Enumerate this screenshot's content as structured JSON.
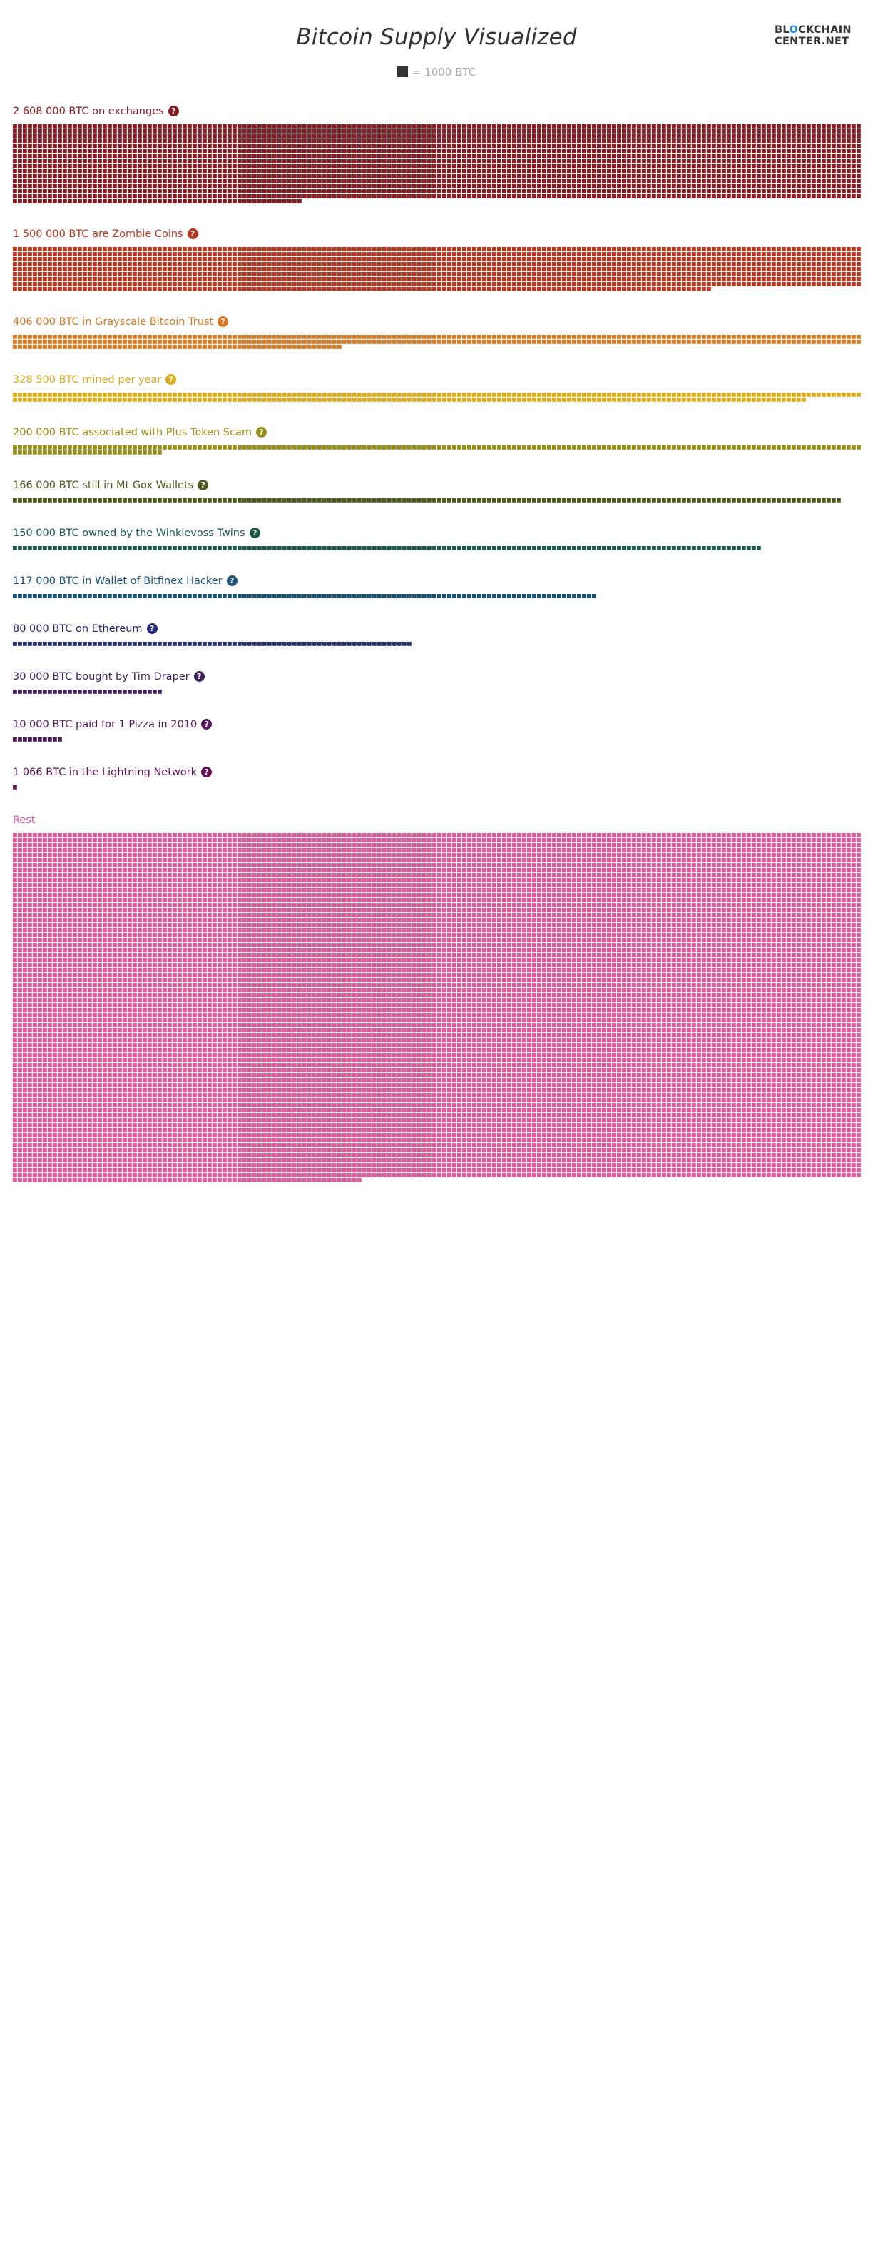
{
  "page": {
    "title": "Bitcoin Supply Visualized",
    "legend_text": "= 1000 BTC",
    "logo_line1_a": "BL",
    "logo_line1_dot": "O",
    "logo_line1_b": "CKCHAIN",
    "logo_line2": "CENTER.NET"
  },
  "chart_data": {
    "type": "waffle",
    "unit": "1000 BTC per square",
    "blocks": [
      {
        "label": "2 608 000 BTC on exchanges",
        "btc": 2608000,
        "color": "#8e1a21",
        "has_help": true
      },
      {
        "label": "1 500 000 BTC are Zombie Coins",
        "btc": 1500000,
        "color": "#b9351e",
        "has_help": true
      },
      {
        "label": "406 000 BTC in Grayscale Bitcoin Trust",
        "btc": 406000,
        "color": "#d9761e",
        "has_help": true
      },
      {
        "label": "328 500 BTC mined per year",
        "btc": 328500,
        "color": "#ddaa1e",
        "has_help": true
      },
      {
        "label": "200 000 BTC associated with Plus Token Scam",
        "btc": 200000,
        "color": "#999018",
        "has_help": true
      },
      {
        "label": "166 000 BTC still in Mt Gox Wallets",
        "btc": 166000,
        "color": "#4d5a1e",
        "has_help": true
      },
      {
        "label": "150 000 BTC owned by the Winklevoss Twins",
        "btc": 150000,
        "color": "#1a5b45",
        "has_help": true
      },
      {
        "label": "117 000 BTC in Wallet of Bitfinex Hacker",
        "btc": 117000,
        "color": "#19537b",
        "has_help": true
      },
      {
        "label": "80 000 BTC on Ethereum",
        "btc": 80000,
        "color": "#232a77",
        "has_help": true
      },
      {
        "label": "30 000 BTC bought by Tim Draper",
        "btc": 30000,
        "color": "#40215f",
        "has_help": true
      },
      {
        "label": "10 000 BTC paid for 1 Pizza in 2010",
        "btc": 10000,
        "color": "#52175c",
        "has_help": true
      },
      {
        "label": "1 066 BTC in the Lightning Network",
        "btc": 1066,
        "color": "#651057",
        "has_help": true
      },
      {
        "label": "Rest",
        "btc": 11800000,
        "color": "#e2579a",
        "has_help": false
      }
    ]
  }
}
